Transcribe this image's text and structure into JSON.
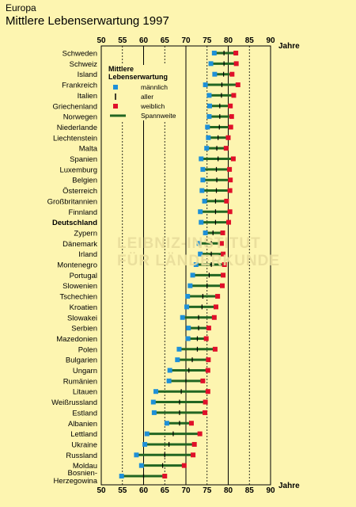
{
  "header": {
    "region": "Europa",
    "title": "Mittlere Lebenserwartung 1997"
  },
  "watermark": {
    "line1": "LEIBNIZ-INSTITUT",
    "line2": "FÜR LÄNDERKUNDE"
  },
  "legend": {
    "title_line1": "Mittlere",
    "title_line2": "Lebenserwartung",
    "items": [
      {
        "label": "männlich",
        "symbol": "blue-square-icon"
      },
      {
        "label": "aller",
        "symbol": "tick-mark-icon"
      },
      {
        "label": "weiblich",
        "symbol": "red-square-icon"
      },
      {
        "label": "Spannweite",
        "symbol": "green-line-icon"
      }
    ]
  },
  "colors": {
    "background": "#fdf5b0",
    "male": "#1e90d8",
    "female": "#e0102a",
    "range": "#226622",
    "grid": "#000000"
  },
  "chart_data": {
    "type": "dumbbell",
    "x_label": "Jahre",
    "xlim": [
      50,
      90
    ],
    "ticks": [
      50,
      55,
      60,
      65,
      70,
      75,
      80,
      85,
      90
    ],
    "solid_gridlines": [
      60,
      70,
      80
    ],
    "dashed_gridlines": [
      55,
      65,
      75,
      85
    ],
    "highlight": "Deutschland",
    "categories": [
      {
        "name": "Schweden",
        "male": 76.7,
        "all": 79.0,
        "female": 81.8
      },
      {
        "name": "Schweiz",
        "male": 75.9,
        "all": 79.0,
        "female": 81.9
      },
      {
        "name": "Island",
        "male": 76.8,
        "all": 78.9,
        "female": 80.9
      },
      {
        "name": "Frankreich",
        "male": 74.6,
        "all": 78.5,
        "female": 82.3
      },
      {
        "name": "Italien",
        "male": 75.5,
        "all": 78.4,
        "female": 81.3
      },
      {
        "name": "Griechenland",
        "male": 75.6,
        "all": 78.0,
        "female": 80.5
      },
      {
        "name": "Norwegen",
        "male": 75.5,
        "all": 78.0,
        "female": 80.8
      },
      {
        "name": "Niederlande",
        "male": 75.1,
        "all": 77.9,
        "female": 80.6
      },
      {
        "name": "Liechtenstein",
        "male": 75.3,
        "all": 77.6,
        "female": 80.0
      },
      {
        "name": "Malta",
        "male": 74.9,
        "all": 77.3,
        "female": 79.5
      },
      {
        "name": "Spanien",
        "male": 73.6,
        "all": 77.6,
        "female": 81.2
      },
      {
        "name": "Luxemburg",
        "male": 74.0,
        "all": 77.2,
        "female": 80.3
      },
      {
        "name": "Belgien",
        "male": 74.0,
        "all": 77.3,
        "female": 80.5
      },
      {
        "name": "Österreich",
        "male": 73.8,
        "all": 77.2,
        "female": 80.4
      },
      {
        "name": "Großbritannien",
        "male": 74.4,
        "all": 77.0,
        "female": 79.6
      },
      {
        "name": "Finnland",
        "male": 73.4,
        "all": 77.0,
        "female": 80.4
      },
      {
        "name": "Deutschland",
        "male": 73.6,
        "all": 77.0,
        "female": 80.1
      },
      {
        "name": "Zypern",
        "male": 74.6,
        "all": 76.4,
        "female": 78.7
      },
      {
        "name": "Dänemark",
        "male": 73.1,
        "all": 76.0,
        "female": 78.4
      },
      {
        "name": "Irland",
        "male": 73.4,
        "all": 76.0,
        "female": 78.8
      },
      {
        "name": "Montenegro",
        "male": 72.4,
        "all": 76.0,
        "female": 79.1
      },
      {
        "name": "Portugal",
        "male": 71.6,
        "all": 75.5,
        "female": 78.8
      },
      {
        "name": "Slowenien",
        "male": 71.0,
        "all": 75.0,
        "female": 78.6
      },
      {
        "name": "Tschechien",
        "male": 70.4,
        "all": 74.0,
        "female": 77.5
      },
      {
        "name": "Kroatien",
        "male": 70.2,
        "all": 73.8,
        "female": 77.1
      },
      {
        "name": "Slowakei",
        "male": 69.2,
        "all": 73.0,
        "female": 76.7
      },
      {
        "name": "Serbien",
        "male": 70.6,
        "all": 73.0,
        "female": 75.4
      },
      {
        "name": "Mazedonien",
        "male": 70.5,
        "all": 72.7,
        "female": 74.8
      },
      {
        "name": "Polen",
        "male": 68.4,
        "all": 72.7,
        "female": 76.9
      },
      {
        "name": "Bulgarien",
        "male": 68.0,
        "all": 71.5,
        "female": 75.3
      },
      {
        "name": "Ungarn",
        "male": 66.2,
        "all": 70.7,
        "female": 75.2
      },
      {
        "name": "Rumänien",
        "male": 66.0,
        "all": 70.0,
        "female": 74.0
      },
      {
        "name": "Litauen",
        "male": 62.9,
        "all": 68.9,
        "female": 75.2
      },
      {
        "name": "Weißrussland",
        "male": 62.3,
        "all": 68.5,
        "female": 74.6
      },
      {
        "name": "Estland",
        "male": 62.5,
        "all": 68.5,
        "female": 74.5
      },
      {
        "name": "Albanien",
        "male": 65.5,
        "all": 68.5,
        "female": 71.3
      },
      {
        "name": "Lettland",
        "male": 60.8,
        "all": 67.0,
        "female": 73.3
      },
      {
        "name": "Ukraine",
        "male": 60.3,
        "all": 66.0,
        "female": 72.0
      },
      {
        "name": "Russland",
        "male": 58.3,
        "all": 65.0,
        "female": 71.7
      },
      {
        "name": "Moldau",
        "male": 59.5,
        "all": 64.5,
        "female": 69.6
      },
      {
        "name": "Bosnien-Herzegowina",
        "male": 54.8,
        "all": 60.0,
        "female": 65.0
      }
    ]
  }
}
